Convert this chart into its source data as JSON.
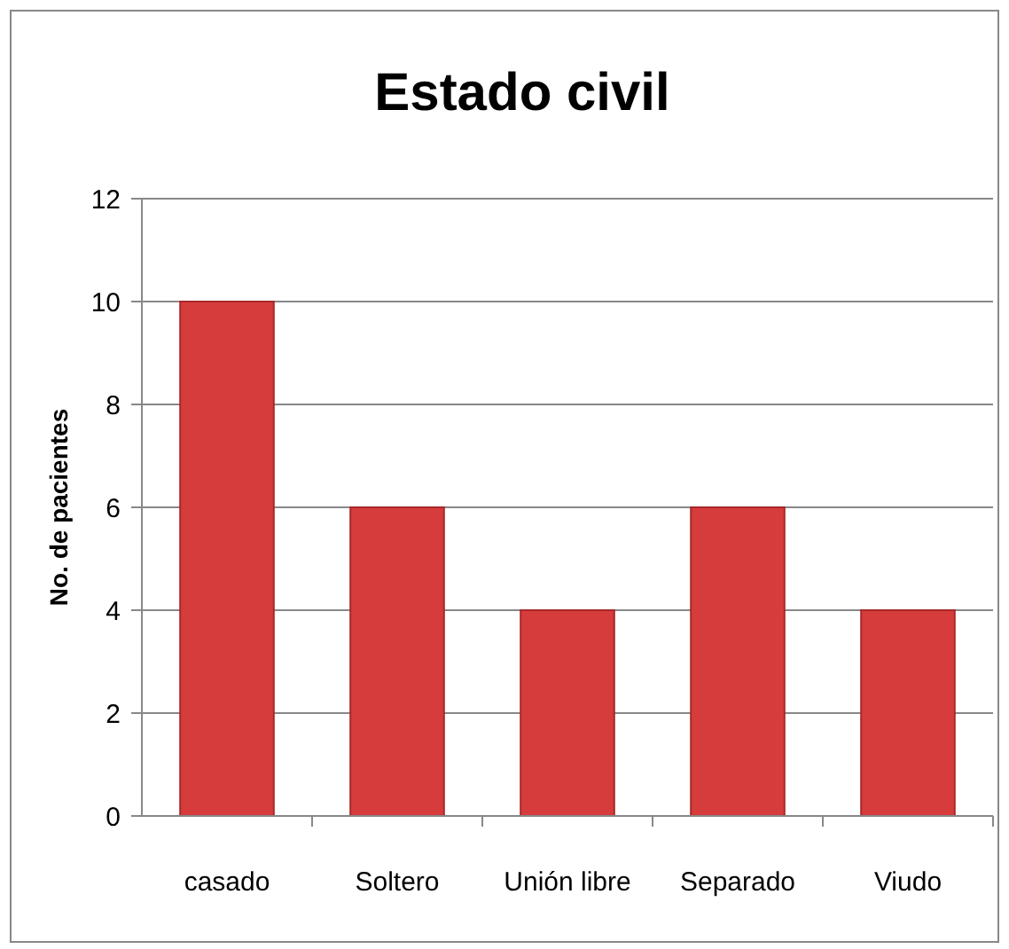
{
  "chart_data": {
    "type": "bar",
    "title": "Estado civil",
    "ylabel": "No. de pacientes",
    "categories": [
      "casado",
      "Soltero",
      "Unión libre",
      "Separado",
      "Viudo"
    ],
    "values": [
      10,
      6,
      4,
      6,
      4
    ],
    "color": "#d63c3c",
    "ylim": [
      0,
      12
    ],
    "yticks": [
      0,
      2,
      4,
      6,
      8,
      10,
      12
    ],
    "grid": "y"
  }
}
